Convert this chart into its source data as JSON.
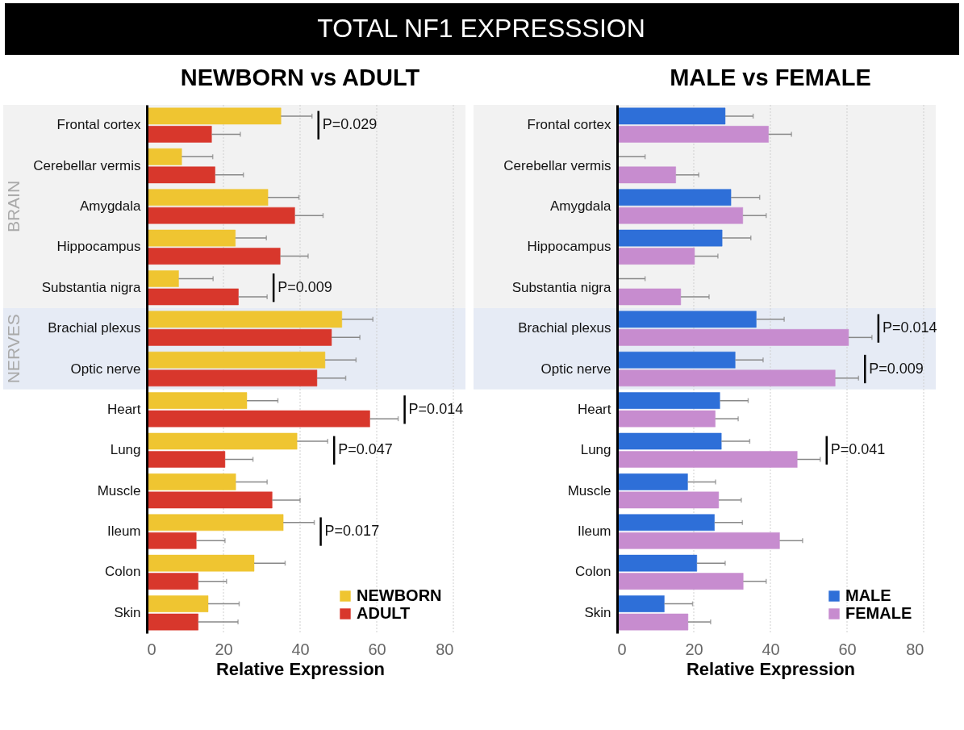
{
  "chart_data": [
    {
      "type": "other",
      "title": "TOTAL NF1 EXPRESSSION"
    },
    {
      "type": "bar",
      "orientation": "horizontal",
      "title": "NEWBORN vs ADULT",
      "xlabel": "Relative Expression",
      "categories": [
        "Frontal cortex",
        "Cerebellar vermis",
        "Amygdala",
        "Hippocampus",
        "Substantia nigra",
        "Brachial plexus",
        "Optic nerve",
        "Heart",
        "Lung",
        "Muscle",
        "Ileum",
        "Colon",
        "Skin"
      ],
      "series": [
        {
          "name": "NEWBORN",
          "color": "#efc531",
          "values": [
            35.0,
            9.1,
            31.6,
            23.1,
            8.3,
            50.9,
            46.5,
            26.1,
            39.2,
            23.2,
            35.6,
            28.0,
            16.0
          ],
          "errors": [
            [
              35.0,
              43.1
            ],
            [
              9.1,
              17.2
            ],
            [
              31.6,
              39.7
            ],
            [
              23.1,
              31.2
            ],
            [
              8.3,
              17.3
            ],
            [
              50.9,
              59.0
            ],
            [
              46.5,
              54.6
            ],
            [
              26.1,
              34.2
            ],
            [
              39.2,
              47.2
            ],
            [
              23.2,
              31.4
            ],
            [
              35.6,
              43.7
            ],
            [
              28.0,
              36.1
            ],
            [
              16.0,
              24.1
            ]
          ]
        },
        {
          "name": "ADULT",
          "color": "#d8372c",
          "values": [
            16.9,
            17.8,
            38.6,
            34.8,
            23.9,
            48.2,
            44.4,
            58.2,
            20.4,
            32.7,
            12.9,
            13.4,
            13.4
          ],
          "errors": [
            [
              16.9,
              24.4
            ],
            [
              17.8,
              25.2
            ],
            [
              38.6,
              46.0
            ],
            [
              34.8,
              42.1
            ],
            [
              23.9,
              31.4
            ],
            [
              48.2,
              55.6
            ],
            [
              44.4,
              51.9
            ],
            [
              58.2,
              65.6
            ],
            [
              20.4,
              27.7
            ],
            [
              32.7,
              40.0
            ],
            [
              12.9,
              20.4
            ],
            [
              13.4,
              20.8
            ],
            [
              13.4,
              23.8
            ]
          ]
        }
      ],
      "xlim": [
        0,
        80
      ],
      "xticks": [
        0,
        20,
        40,
        60,
        80
      ],
      "grid": "x",
      "legend": "bottom right",
      "bands": [
        {
          "axis": "y",
          "from": "Frontal cortex",
          "to": "Substantia nigra",
          "label": "BRAIN",
          "color": "#f2f2f2"
        },
        {
          "axis": "y",
          "from": "Brachial plexus",
          "to": "Optic nerve",
          "label": "NERVES",
          "color": "#e6ebf5"
        }
      ],
      "annotations": [
        {
          "text": "P=0.029",
          "x": 35.0,
          "y": "Frontal cortex"
        },
        {
          "text": "P=0.009",
          "x": 23.9,
          "y": "Substantia nigra"
        },
        {
          "text": "P=0.014",
          "x": 58.2,
          "y": "Heart"
        },
        {
          "text": "P=0.047",
          "x": 39.2,
          "y": "Lung"
        },
        {
          "text": "P=0.017",
          "x": 35.6,
          "y": "Ileum"
        }
      ]
    },
    {
      "type": "bar",
      "orientation": "horizontal",
      "title": "MALE vs FEMALE",
      "xlabel": "Relative Expression",
      "categories": [
        "Frontal cortex",
        "Cerebellar vermis",
        "Amygdala",
        "Hippocampus",
        "Substantia nigra",
        "Brachial plexus",
        "Optic nerve",
        "Heart",
        "Lung",
        "Muscle",
        "Ileum",
        "Colon",
        "Skin"
      ],
      "series": [
        {
          "name": "MALE",
          "color": "#2e6fd8",
          "values": [
            28.2,
            0,
            29.7,
            27.4,
            0,
            36.3,
            30.8,
            26.8,
            27.2,
            18.4,
            25.4,
            20.8,
            12.3
          ],
          "errors": [
            [
              28.2,
              35.5
            ],
            [
              0,
              7.3
            ],
            [
              29.7,
              37.2
            ],
            [
              27.4,
              34.9
            ],
            [
              0,
              7.3
            ],
            [
              36.3,
              43.6
            ],
            [
              30.8,
              38.1
            ],
            [
              26.8,
              34.2
            ],
            [
              27.2,
              34.6
            ],
            [
              18.4,
              25.7
            ],
            [
              25.4,
              32.7
            ],
            [
              20.8,
              28.2
            ],
            [
              12.3,
              19.7
            ]
          ]
        },
        {
          "name": "FEMALE",
          "color": "#c78ccf",
          "values": [
            39.5,
            15.3,
            32.8,
            20.2,
            16.6,
            60.4,
            56.9,
            25.6,
            47.0,
            26.5,
            42.4,
            32.9,
            18.5
          ],
          "errors": [
            [
              39.5,
              45.5
            ],
            [
              15.3,
              21.3
            ],
            [
              32.8,
              38.9
            ],
            [
              20.2,
              26.3
            ],
            [
              16.6,
              24.0
            ],
            [
              60.4,
              66.5
            ],
            [
              56.9,
              63.0
            ],
            [
              25.6,
              31.6
            ],
            [
              47.0,
              53.0
            ],
            [
              26.5,
              32.4
            ],
            [
              42.4,
              48.4
            ],
            [
              32.9,
              38.9
            ],
            [
              18.5,
              24.4
            ]
          ]
        }
      ],
      "xlim": [
        0,
        80
      ],
      "xticks": [
        0,
        20,
        40,
        60,
        80
      ],
      "grid": "x",
      "legend": "bottom right",
      "bands": [
        {
          "axis": "y",
          "from": "Frontal cortex",
          "to": "Substantia nigra",
          "color": "#f2f2f2"
        },
        {
          "axis": "y",
          "from": "Brachial plexus",
          "to": "Optic nerve",
          "color": "#e6ebf5"
        }
      ],
      "annotations": [
        {
          "text": "P=0.014",
          "x": 60.4,
          "y": "Brachial plexus"
        },
        {
          "text": "P=0.009",
          "x": 56.9,
          "y": "Optic nerve"
        },
        {
          "text": "P=0.041",
          "x": 47.0,
          "y": "Lung"
        }
      ]
    }
  ]
}
